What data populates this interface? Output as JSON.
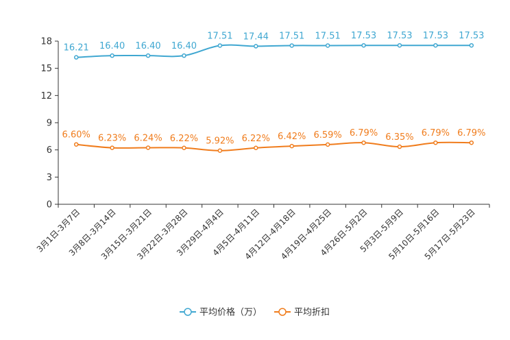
{
  "chart_data": {
    "type": "line",
    "title": "",
    "xlabel": "",
    "ylabel": "",
    "ylim": [
      0,
      18
    ],
    "yticks": [
      0,
      3,
      6,
      9,
      12,
      15,
      18
    ],
    "grid": false,
    "legend_position": "bottom-center",
    "categories": [
      "3月1日-3月7日",
      "3月8日-3月14日",
      "3月15日-3月21日",
      "3月22日-3月28日",
      "3月29日-4月4日",
      "4月5日-4月11日",
      "4月12日-4月18日",
      "4月19日-4月25日",
      "4月26日-5月2日",
      "5月3日-5月9日",
      "5月10日-5月16日",
      "5月17日-5月23日"
    ],
    "series": [
      {
        "name": "平均价格（万）",
        "color": "#3fa7d1",
        "values": [
          16.21,
          16.4,
          16.4,
          16.4,
          17.51,
          17.44,
          17.51,
          17.51,
          17.53,
          17.53,
          17.53,
          17.53
        ],
        "labels": [
          "16.21",
          "16.40",
          "16.40",
          "16.40",
          "17.51",
          "17.44",
          "17.51",
          "17.51",
          "17.53",
          "17.53",
          "17.53",
          "17.53"
        ]
      },
      {
        "name": "平均折扣",
        "color": "#f07c1c",
        "values": [
          6.6,
          6.23,
          6.24,
          6.22,
          5.92,
          6.22,
          6.42,
          6.59,
          6.79,
          6.35,
          6.79,
          6.79
        ],
        "labels": [
          "6.60%",
          "6.23%",
          "6.24%",
          "6.22%",
          "5.92%",
          "6.22%",
          "6.42%",
          "6.59%",
          "6.79%",
          "6.35%",
          "6.79%",
          "6.79%"
        ]
      }
    ]
  }
}
